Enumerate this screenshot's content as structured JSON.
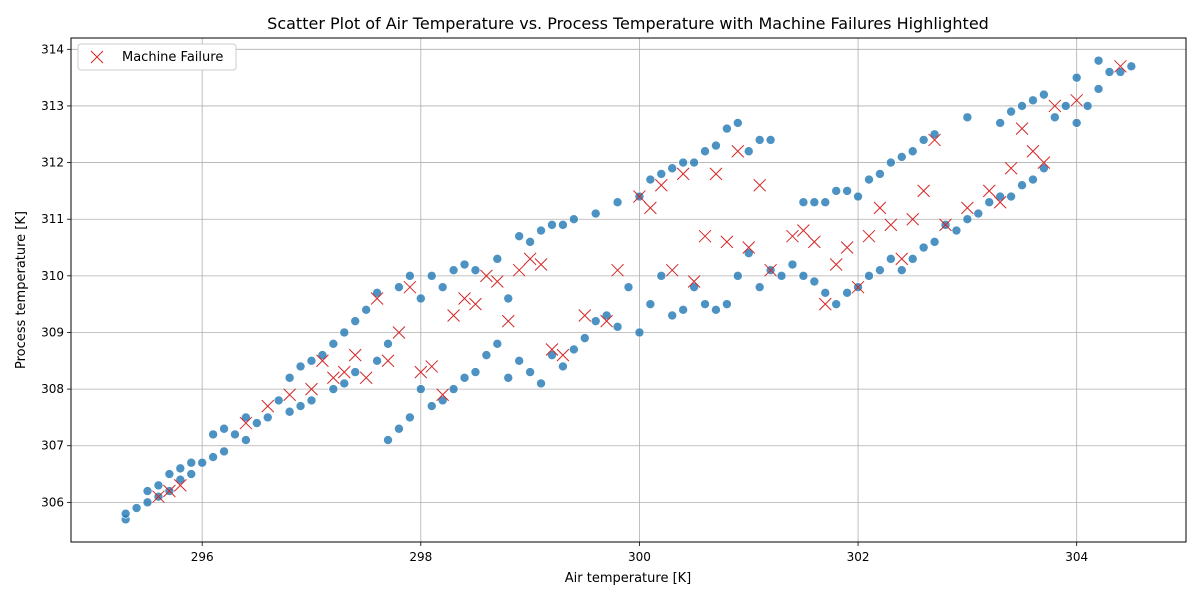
{
  "chart_data": {
    "type": "scatter",
    "title": "Scatter Plot of Air Temperature vs. Process Temperature with Machine Failures Highlighted",
    "xlabel": "Air temperature [K]",
    "ylabel": "Process temperature [K]",
    "xlim": [
      294.8,
      305.0
    ],
    "ylim": [
      305.3,
      314.2
    ],
    "xticks": [
      296,
      298,
      300,
      302,
      304
    ],
    "yticks": [
      306,
      307,
      308,
      309,
      310,
      311,
      312,
      313,
      314
    ],
    "grid": true,
    "legend": {
      "placement": "top-left",
      "entries": [
        {
          "label": "Machine Failure",
          "marker": "x",
          "color": "#d62728"
        }
      ]
    },
    "colors": {
      "all_points": "#1f77b4",
      "failures": "#d62728"
    },
    "series": [
      {
        "name": "",
        "marker": "circle",
        "x": [
          295.3,
          295.3,
          295.4,
          295.5,
          295.5,
          295.6,
          295.6,
          295.7,
          295.7,
          295.8,
          295.8,
          295.9,
          295.9,
          296.0,
          296.1,
          296.1,
          296.2,
          296.2,
          296.3,
          296.4,
          296.4,
          296.5,
          296.6,
          296.7,
          296.8,
          296.8,
          296.9,
          296.9,
          297.0,
          297.0,
          297.1,
          297.2,
          297.2,
          297.3,
          297.3,
          297.4,
          297.4,
          297.5,
          297.6,
          297.6,
          297.7,
          297.7,
          297.8,
          297.8,
          297.9,
          297.9,
          298.0,
          298.0,
          298.1,
          298.1,
          298.2,
          298.2,
          298.3,
          298.3,
          298.4,
          298.4,
          298.5,
          298.5,
          298.6,
          298.7,
          298.7,
          298.8,
          298.8,
          298.9,
          298.9,
          299.0,
          299.0,
          299.1,
          299.1,
          299.2,
          299.2,
          299.3,
          299.3,
          299.4,
          299.4,
          299.5,
          299.6,
          299.6,
          299.7,
          299.8,
          299.8,
          299.9,
          300.0,
          300.0,
          300.1,
          300.1,
          300.2,
          300.2,
          300.3,
          300.3,
          300.4,
          300.4,
          300.5,
          300.5,
          300.6,
          300.6,
          300.7,
          300.7,
          300.8,
          300.8,
          300.9,
          300.9,
          301.0,
          301.0,
          301.1,
          301.1,
          301.2,
          301.2,
          301.3,
          301.4,
          301.5,
          301.5,
          301.6,
          301.6,
          301.7,
          301.7,
          301.8,
          301.8,
          301.9,
          301.9,
          302.0,
          302.0,
          302.1,
          302.1,
          302.2,
          302.2,
          302.3,
          302.3,
          302.4,
          302.4,
          302.5,
          302.5,
          302.6,
          302.6,
          302.7,
          302.7,
          302.8,
          302.9,
          303.0,
          303.0,
          303.1,
          303.2,
          303.3,
          303.3,
          303.4,
          303.4,
          303.5,
          303.5,
          303.6,
          303.6,
          303.7,
          303.7,
          303.8,
          303.9,
          304.0,
          304.0,
          304.1,
          304.2,
          304.2,
          304.3,
          304.4,
          304.5
        ],
        "y": [
          305.7,
          305.8,
          305.9,
          306.0,
          306.2,
          306.1,
          306.3,
          306.2,
          306.5,
          306.4,
          306.6,
          306.5,
          306.7,
          306.7,
          306.8,
          307.2,
          306.9,
          307.3,
          307.2,
          307.1,
          307.5,
          307.4,
          307.5,
          307.8,
          307.6,
          308.2,
          307.7,
          308.4,
          307.8,
          308.5,
          308.6,
          308.0,
          308.8,
          308.1,
          309.0,
          308.3,
          309.2,
          309.4,
          308.5,
          309.7,
          307.1,
          308.8,
          307.3,
          309.8,
          307.5,
          310.0,
          308.0,
          309.6,
          307.7,
          310.0,
          307.8,
          309.8,
          308.0,
          310.1,
          308.2,
          310.2,
          308.3,
          310.1,
          308.6,
          308.8,
          310.3,
          308.2,
          309.6,
          308.5,
          310.7,
          308.3,
          310.6,
          308.1,
          310.8,
          308.6,
          310.9,
          308.4,
          310.9,
          308.7,
          311.0,
          308.9,
          309.2,
          311.1,
          309.3,
          309.1,
          311.3,
          309.8,
          309.0,
          311.4,
          309.5,
          311.7,
          310.0,
          311.8,
          309.3,
          311.9,
          309.4,
          312.0,
          309.8,
          312.0,
          309.5,
          312.2,
          309.4,
          312.3,
          309.5,
          312.6,
          310.0,
          312.7,
          310.4,
          312.2,
          309.8,
          312.4,
          310.1,
          312.4,
          310.0,
          310.2,
          310.0,
          311.3,
          309.9,
          311.3,
          309.7,
          311.3,
          309.5,
          311.5,
          309.7,
          311.5,
          309.8,
          311.4,
          310.0,
          311.7,
          310.1,
          311.8,
          310.3,
          312.0,
          310.1,
          312.1,
          310.3,
          312.2,
          310.5,
          312.4,
          310.6,
          312.5,
          310.9,
          310.8,
          311.0,
          312.8,
          311.1,
          311.3,
          311.4,
          312.7,
          311.4,
          312.9,
          311.6,
          313.0,
          311.7,
          313.1,
          311.9,
          313.2,
          312.8,
          313.0,
          312.7,
          313.5,
          313.0,
          313.3,
          313.8,
          313.6,
          313.6,
          313.7
        ]
      },
      {
        "name": "Machine Failure",
        "marker": "x",
        "x": [
          295.6,
          295.7,
          295.8,
          296.4,
          296.6,
          296.8,
          297.0,
          297.1,
          297.2,
          297.3,
          297.4,
          297.5,
          297.6,
          297.7,
          297.8,
          297.9,
          298.0,
          298.1,
          298.2,
          298.3,
          298.4,
          298.5,
          298.6,
          298.7,
          298.8,
          298.9,
          299.0,
          299.1,
          299.2,
          299.3,
          299.5,
          299.7,
          299.8,
          300.0,
          300.1,
          300.2,
          300.3,
          300.4,
          300.5,
          300.6,
          300.7,
          300.8,
          300.9,
          301.0,
          301.1,
          301.2,
          301.4,
          301.5,
          301.6,
          301.7,
          301.8,
          301.9,
          302.0,
          302.1,
          302.2,
          302.3,
          302.4,
          302.5,
          302.6,
          302.7,
          302.8,
          303.0,
          303.2,
          303.3,
          303.4,
          303.5,
          303.6,
          303.7,
          303.8,
          304.0,
          304.4
        ],
        "y": [
          306.1,
          306.2,
          306.3,
          307.4,
          307.7,
          307.9,
          308.0,
          308.5,
          308.2,
          308.3,
          308.6,
          308.2,
          309.6,
          308.5,
          309.0,
          309.8,
          308.3,
          308.4,
          307.9,
          309.3,
          309.6,
          309.5,
          310.0,
          309.9,
          309.2,
          310.1,
          310.3,
          310.2,
          308.7,
          308.6,
          309.3,
          309.2,
          310.1,
          311.4,
          311.2,
          311.6,
          310.1,
          311.8,
          309.9,
          310.7,
          311.8,
          310.6,
          312.2,
          310.5,
          311.6,
          310.1,
          310.7,
          310.8,
          310.6,
          309.5,
          310.2,
          310.5,
          309.8,
          310.7,
          311.2,
          310.9,
          310.3,
          311.0,
          311.5,
          312.4,
          310.9,
          311.2,
          311.5,
          311.3,
          311.9,
          312.6,
          312.2,
          312.0,
          313.0,
          313.1,
          313.7
        ]
      }
    ]
  }
}
